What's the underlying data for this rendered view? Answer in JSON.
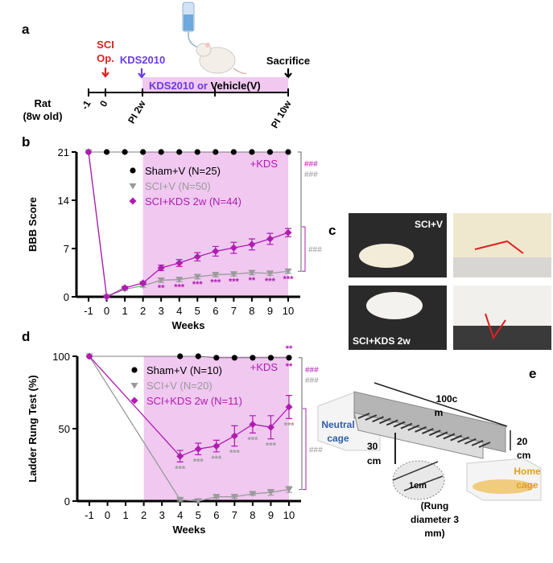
{
  "colors": {
    "sham": "#000000",
    "sci": "#9a9a9a",
    "kds": "#b01cb0",
    "shade": "#f0c8f0",
    "sci_op": "#e01e1e",
    "kds_label": "#6a3be0",
    "neutral": "#2f5ea8",
    "home": "#e0a020"
  },
  "panel_a": {
    "label": "a",
    "sci_op": [
      "SCI",
      "Op."
    ],
    "kds": "KDS2010",
    "sacrifice": "Sacrifice",
    "treatment_kds": "KDS2010 or ",
    "treatment_vehicle": "Vehicle(V)",
    "rat": [
      "Rat",
      "(8w old)"
    ],
    "ticks": [
      "-1",
      "0",
      "PI 2w",
      "PI 10w"
    ],
    "icons": [
      "water-bottle-icon",
      "rat-icon",
      "arrow-down-icon"
    ]
  },
  "panel_c": {
    "label": "c",
    "top_label": "SCI+V",
    "bottom_label": "SCI+KDS 2w"
  },
  "panel_e": {
    "label": "e",
    "length": [
      "100c",
      "m"
    ],
    "height": [
      "20",
      "cm"
    ],
    "drop": [
      "30",
      "cm"
    ],
    "spacing": "1cm",
    "rung": [
      "(Rung",
      "diameter 3",
      "mm)"
    ],
    "neutral": [
      "Neutral",
      "cage"
    ],
    "home": [
      "Home",
      "cage"
    ]
  },
  "chart_data": [
    {
      "panel": "b",
      "type": "line",
      "xlabel": "Weeks",
      "ylabel": "BBB Score",
      "xlim": [
        -1,
        10
      ],
      "ylim": [
        0,
        21
      ],
      "x_ticks": [
        "-1",
        "0",
        "1",
        "2",
        "3",
        "4",
        "5",
        "6",
        "7",
        "8",
        "9",
        "10"
      ],
      "y_ticks": [
        "0",
        "7",
        "14",
        "21"
      ],
      "shaded_region": [
        2,
        10
      ],
      "shaded_label": "+KDS",
      "legend": "top-center",
      "series": [
        {
          "name": "Sham+V (N=25)",
          "marker": "circle",
          "x": [
            -1,
            0,
            1,
            2,
            3,
            4,
            5,
            6,
            7,
            8,
            9,
            10
          ],
          "values": [
            21,
            21,
            21,
            21,
            21,
            21,
            21,
            21,
            21,
            21,
            21,
            21
          ]
        },
        {
          "name": "SCI+V (N=50)",
          "marker": "triangle-down",
          "x": [
            -1,
            0,
            1,
            2,
            3,
            4,
            5,
            6,
            7,
            8,
            9,
            10
          ],
          "values": [
            21,
            0,
            1.1,
            1.6,
            2.4,
            2.5,
            2.9,
            3.2,
            3.3,
            3.5,
            3.4,
            3.7
          ],
          "errors": [
            0,
            0,
            0.2,
            0.2,
            0.3,
            0.3,
            0.3,
            0.3,
            0.3,
            0.3,
            0.3,
            0.3
          ]
        },
        {
          "name": "SCI+KDS 2w (N=44)",
          "marker": "diamond",
          "x": [
            -1,
            0,
            1,
            2,
            3,
            4,
            5,
            6,
            7,
            8,
            9,
            10
          ],
          "values": [
            21,
            0,
            1.3,
            2.0,
            4.2,
            4.9,
            5.8,
            6.6,
            7.1,
            7.6,
            8.4,
            9.3
          ],
          "errors": [
            0,
            0,
            0.2,
            0.2,
            0.4,
            0.5,
            0.6,
            0.7,
            0.8,
            0.8,
            0.8,
            0.6
          ]
        }
      ],
      "point_annotations": {
        "x": [
          3,
          4,
          5,
          6,
          7,
          8,
          9,
          10
        ],
        "labels": [
          "**",
          "***",
          "***",
          "***",
          "***",
          "**",
          "***",
          "***"
        ]
      },
      "brackets": [
        {
          "label": "###",
          "color": "kds"
        },
        {
          "label": "###",
          "color": "sci"
        },
        {
          "label": "###",
          "color": "sci"
        }
      ]
    },
    {
      "panel": "d",
      "type": "line",
      "xlabel": "Weeks",
      "ylabel": "Ladder Rung Test (%)",
      "xlim": [
        -1,
        10
      ],
      "ylim": [
        0,
        100
      ],
      "x_ticks": [
        "-1",
        "0",
        "1",
        "2",
        "3",
        "4",
        "5",
        "6",
        "7",
        "8",
        "9",
        "10"
      ],
      "y_ticks": [
        "0",
        "50",
        "100"
      ],
      "shaded_region": [
        2,
        10
      ],
      "shaded_label": "+KDS",
      "legend": "top-center",
      "series": [
        {
          "name": "Sham+V (N=10)",
          "marker": "circle",
          "x": [
            -1,
            4,
            5,
            6,
            7,
            8,
            9,
            10
          ],
          "values": [
            100,
            100,
            100,
            99,
            99,
            99,
            99,
            99
          ]
        },
        {
          "name": "SCI+V (N=20)",
          "marker": "triangle-down",
          "x": [
            -1,
            4,
            5,
            6,
            7,
            8,
            9,
            10
          ],
          "values": [
            100,
            1,
            0,
            3,
            3,
            5,
            6,
            8
          ],
          "errors": [
            0,
            1,
            1,
            1,
            1,
            1,
            2,
            2
          ]
        },
        {
          "name": "SCI+KDS 2w (N=11)",
          "marker": "diamond",
          "x": [
            -1,
            4,
            5,
            6,
            7,
            8,
            9,
            10
          ],
          "values": [
            100,
            31,
            36,
            38,
            45,
            53,
            51,
            65
          ],
          "errors": [
            0,
            4,
            4,
            4,
            7,
            6,
            8,
            8
          ]
        }
      ],
      "point_annotations": {
        "x": [
          4,
          5,
          6,
          7,
          8,
          9,
          10
        ],
        "labels": [
          "***",
          "***",
          "***",
          "***",
          "***",
          "***",
          "***"
        ]
      },
      "top_annotations": [
        "**",
        "**"
      ],
      "brackets": [
        {
          "label": "###",
          "color": "kds"
        },
        {
          "label": "###",
          "color": "sci"
        },
        {
          "label": "###",
          "color": "sci"
        }
      ]
    }
  ]
}
